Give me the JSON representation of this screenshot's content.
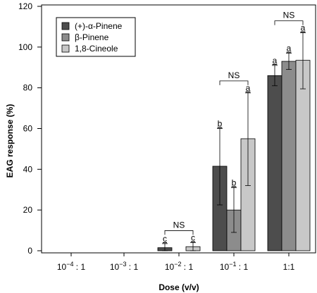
{
  "chart_data": {
    "type": "bar",
    "ylabel": "EAG response (%)",
    "xlabel": "Dose (v/v)",
    "ylim": [
      0,
      120
    ],
    "yticks": [
      0,
      20,
      40,
      60,
      80,
      100,
      120
    ],
    "categories": [
      {
        "base": "10",
        "exp": "−4",
        "suffix": ": 1"
      },
      {
        "base": "10",
        "exp": "−3",
        "suffix": ": 1"
      },
      {
        "base": "10",
        "exp": "−2",
        "suffix": ": 1"
      },
      {
        "base": "10",
        "exp": "−1",
        "suffix": ": 1"
      },
      {
        "base": "1:1",
        "exp": "",
        "suffix": ""
      }
    ],
    "series": [
      {
        "name": "(+)-α-Pinene",
        "color": "#4d4d4d",
        "values": [
          0,
          0,
          1.5,
          41.5,
          86
        ],
        "err_low": [
          null,
          null,
          0,
          22.5,
          81
        ],
        "err_high": [
          null,
          null,
          3.5,
          60,
          91
        ],
        "letters": [
          "",
          "",
          "c",
          "b",
          "a"
        ]
      },
      {
        "name": "β-Pinene",
        "color": "#8c8c8c",
        "values": [
          0,
          0,
          0,
          20,
          93
        ],
        "err_low": [
          null,
          null,
          null,
          9,
          89
        ],
        "err_high": [
          null,
          null,
          null,
          31,
          97
        ],
        "letters": [
          "",
          "",
          "",
          "b",
          "a"
        ]
      },
      {
        "name": "1,8-Cineole",
        "color": "#c8c8c8",
        "values": [
          0,
          0,
          2,
          55,
          93.5
        ],
        "err_low": [
          null,
          null,
          0,
          32,
          79.5
        ],
        "err_high": [
          null,
          null,
          4,
          77.5,
          107
        ],
        "letters": [
          "",
          "",
          "c",
          "a",
          "a"
        ]
      }
    ],
    "significance": [
      {
        "category": 2,
        "label": "NS"
      },
      {
        "category": 3,
        "label": "NS"
      },
      {
        "category": 4,
        "label": "NS"
      }
    ],
    "legend": {
      "position": "top-left"
    },
    "grid": false
  }
}
